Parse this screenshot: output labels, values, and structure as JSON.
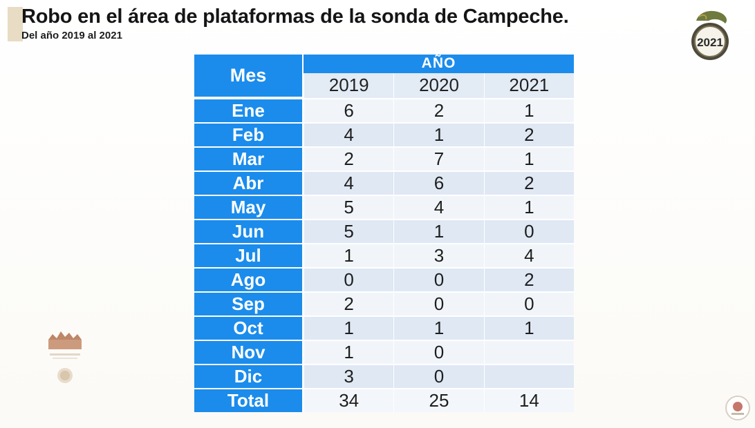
{
  "title": "Robo en el área de plataformas de la sonda de Campeche.",
  "subtitle": "Del año 2019 al 2021",
  "table": {
    "month_header": "Mes",
    "year_group_header": "AÑO",
    "years": [
      "2019",
      "2020",
      "2021"
    ],
    "rows": [
      {
        "month": "Ene",
        "values": [
          "6",
          "2",
          "1"
        ]
      },
      {
        "month": "Feb",
        "values": [
          "4",
          "1",
          "2"
        ]
      },
      {
        "month": "Mar",
        "values": [
          "2",
          "7",
          "1"
        ]
      },
      {
        "month": "Abr",
        "values": [
          "4",
          "6",
          "2"
        ]
      },
      {
        "month": "May",
        "values": [
          "5",
          "4",
          "1"
        ]
      },
      {
        "month": "Jun",
        "values": [
          "5",
          "1",
          "0"
        ]
      },
      {
        "month": "Jul",
        "values": [
          "1",
          "3",
          "4"
        ]
      },
      {
        "month": "Ago",
        "values": [
          "0",
          "0",
          "2"
        ]
      },
      {
        "month": "Sep",
        "values": [
          "2",
          "0",
          "0"
        ]
      },
      {
        "month": "Oct",
        "values": [
          "1",
          "1",
          "1"
        ]
      },
      {
        "month": "Nov",
        "values": [
          "1",
          "0",
          ""
        ]
      },
      {
        "month": "Dic",
        "values": [
          "3",
          "0",
          ""
        ]
      }
    ],
    "total": {
      "label": "Total",
      "values": [
        "34",
        "25",
        "14"
      ]
    }
  },
  "logos": {
    "top_right": {
      "icon": "year-2021-emblem-icon",
      "text": "2021"
    },
    "left": {
      "icon": "government-building-logo-icon"
    },
    "bottom_right": {
      "icon": "government-seal-icon"
    }
  },
  "colors": {
    "header_blue": "#1b8ceb",
    "row_light": "#f1f5fa",
    "row_dark": "#dfe8f3"
  }
}
